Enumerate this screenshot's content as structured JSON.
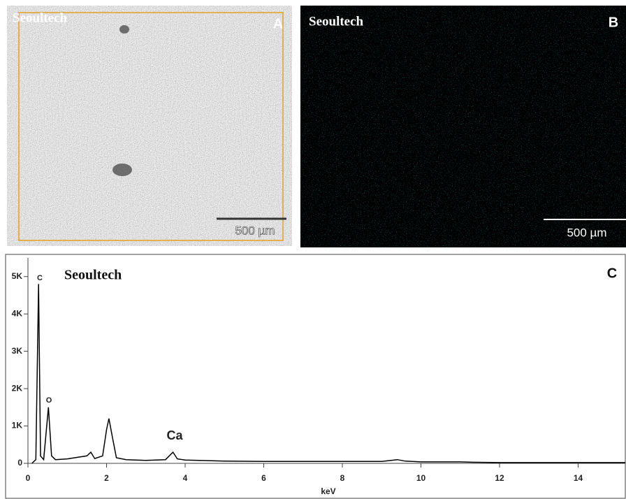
{
  "panels": [
    {
      "label": "A",
      "watermark": "Seoultech",
      "scale_bar": "500 µm"
    },
    {
      "label": "B",
      "watermark": "Seoultech",
      "scale_bar": "500 µm"
    }
  ],
  "chart_data": {
    "type": "line",
    "panel_label": "C",
    "title": "Seoultech",
    "x_label": "keV",
    "x": [
      0.1,
      0.2,
      0.27,
      0.32,
      0.4,
      0.52,
      0.6,
      0.7,
      1.0,
      1.5,
      1.6,
      1.7,
      1.9,
      2.0,
      2.06,
      2.15,
      2.25,
      2.5,
      3.0,
      3.5,
      3.69,
      3.8,
      4.0,
      5.0,
      6.0,
      8.0,
      9.0,
      9.4,
      9.6,
      10.0,
      11.0,
      11.3,
      12.0,
      15.2
    ],
    "values": [
      0,
      100,
      4800,
      200,
      100,
      1500,
      200,
      100,
      120,
      200,
      300,
      130,
      200,
      900,
      1200,
      700,
      150,
      100,
      80,
      100,
      300,
      120,
      90,
      60,
      50,
      50,
      50,
      100,
      60,
      40,
      40,
      30,
      20,
      20
    ],
    "color": "#000000",
    "annotations": [
      "C",
      "O",
      "Ca"
    ],
    "xlim": [
      0,
      15.2
    ],
    "xticks": [
      0,
      2,
      4,
      6,
      8,
      10,
      12,
      14
    ],
    "ylim": [
      0,
      5500
    ],
    "yticks": [
      0,
      {
        "value": 1000,
        "label": "1K"
      },
      {
        "value": 2000,
        "label": "2K"
      },
      {
        "value": 3000,
        "label": "3K"
      },
      {
        "value": 4000,
        "label": "4K"
      },
      {
        "value": 5000,
        "label": "5K"
      }
    ]
  }
}
